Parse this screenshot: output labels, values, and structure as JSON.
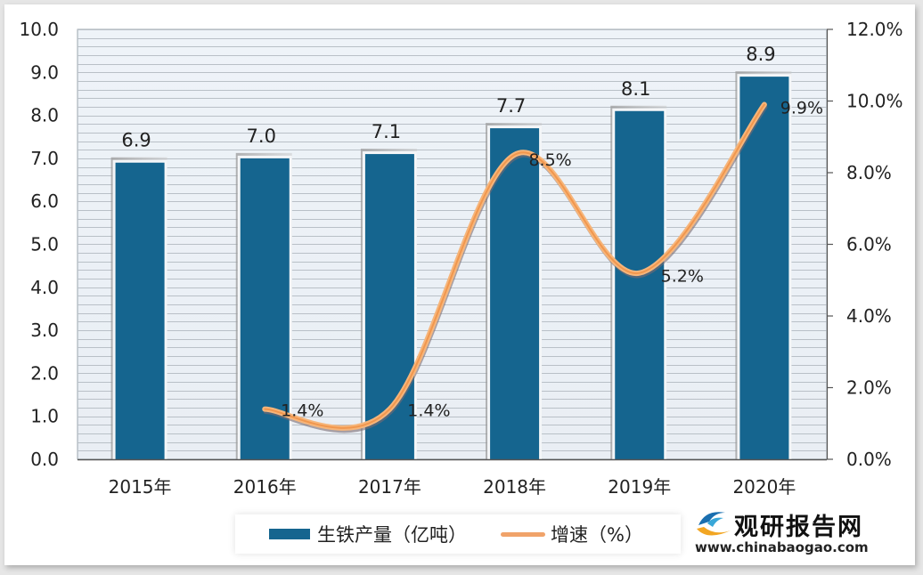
{
  "chart_data": {
    "type": "bar",
    "title": "",
    "categories": [
      "2015年",
      "2016年",
      "2017年",
      "2018年",
      "2019年",
      "2020年"
    ],
    "series": [
      {
        "name": "生铁产量（亿吨）",
        "type": "bar",
        "axis": "left",
        "color": "#15658f",
        "values": [
          6.9,
          7.0,
          7.1,
          7.7,
          8.1,
          8.9
        ],
        "labels": [
          "6.9",
          "7.0",
          "7.1",
          "7.7",
          "8.1",
          "8.9"
        ]
      },
      {
        "name": "增速（%）",
        "type": "line",
        "axis": "right",
        "color": "#f0a36a",
        "smooth": true,
        "values": [
          null,
          1.4,
          1.4,
          8.5,
          5.2,
          9.9
        ],
        "labels": [
          "",
          "1.4%",
          "1.4%",
          "8.5%",
          "5.2%",
          "9.9%"
        ]
      }
    ],
    "left_axis": {
      "min": 0,
      "max": 10,
      "step": 1,
      "ticks": [
        "0.0",
        "1.0",
        "2.0",
        "3.0",
        "4.0",
        "5.0",
        "6.0",
        "7.0",
        "8.0",
        "9.0",
        "10.0"
      ]
    },
    "right_axis": {
      "min": 0,
      "max": 12,
      "step": 2,
      "ticks": [
        "0.0%",
        "2.0%",
        "4.0%",
        "6.0%",
        "8.0%",
        "10.0%",
        "12.0%"
      ]
    },
    "xlabel": "",
    "ylabel": "",
    "grid": true,
    "legend_position": "bottom"
  },
  "legend": {
    "bar_label": "生铁产量（亿吨）",
    "line_label": "增速（%）"
  },
  "watermark": {
    "title": "观研报告网",
    "url": "www.chinabaogao.com"
  }
}
